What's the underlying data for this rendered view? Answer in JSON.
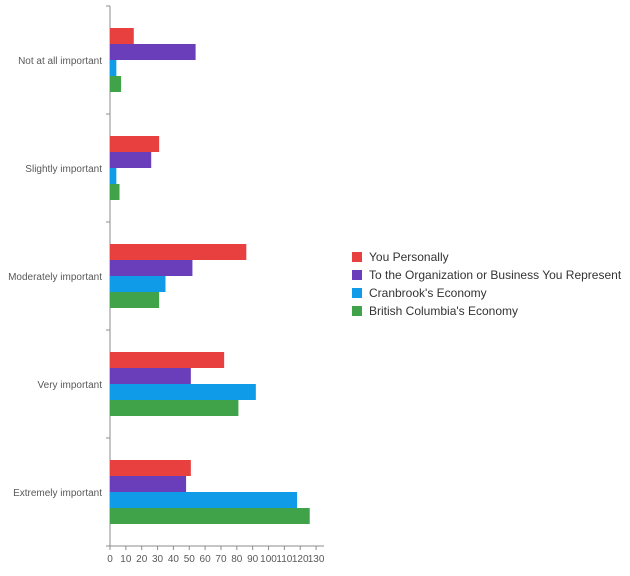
{
  "chart_data": {
    "type": "bar",
    "orientation": "horizontal",
    "categories": [
      "Not at all important",
      "Slightly important",
      "Moderately important",
      "Very important",
      "Extremely important"
    ],
    "series": [
      {
        "name": "You Personally",
        "color": "#e8403f",
        "values": [
          15,
          31,
          86,
          72,
          51
        ]
      },
      {
        "name": "To the Organization or Business You Represent",
        "color": "#6a3dbb",
        "values": [
          54,
          26,
          52,
          51,
          48
        ]
      },
      {
        "name": "Cranbrook's Economy",
        "color": "#0f9be8",
        "values": [
          4,
          4,
          35,
          92,
          118
        ]
      },
      {
        "name": "British Columbia's Economy",
        "color": "#40a34a",
        "values": [
          7,
          6,
          31,
          81,
          126
        ]
      }
    ],
    "xlim": [
      0,
      135
    ],
    "xticks": [
      "0",
      "10",
      "20",
      "30",
      "40",
      "50",
      "60",
      "70",
      "80",
      "90",
      "100",
      "110",
      "120",
      "130"
    ],
    "legend_position": "right",
    "grid": false
  }
}
